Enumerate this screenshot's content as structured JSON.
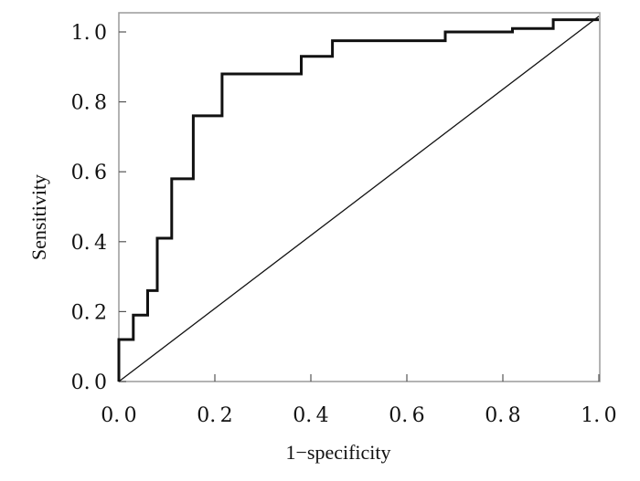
{
  "chart_data": {
    "type": "line",
    "title": "",
    "xlabel": "1−specificity",
    "ylabel": "Sensitivity",
    "xlim": [
      0,
      1.0
    ],
    "ylim": [
      0,
      1.0
    ],
    "x_ticks": [
      0.0,
      0.2,
      0.4,
      0.6,
      0.8,
      1.0
    ],
    "x_tick_labels": [
      "0. 0",
      "0. 2",
      "0. 4",
      "0. 6",
      "0. 8",
      "1. 0"
    ],
    "y_ticks": [
      0.0,
      0.2,
      0.4,
      0.6,
      0.8,
      1.0
    ],
    "y_tick_labels": [
      "0. 0",
      "0. 2",
      "0. 4",
      "0. 6",
      "0. 8",
      "1. 0"
    ],
    "grid": false,
    "series": [
      {
        "style": "step",
        "color": "#111111",
        "points": [
          [
            0.0,
            0.0
          ],
          [
            0.0,
            0.12
          ],
          [
            0.03,
            0.12
          ],
          [
            0.03,
            0.19
          ],
          [
            0.06,
            0.19
          ],
          [
            0.06,
            0.26
          ],
          [
            0.08,
            0.26
          ],
          [
            0.08,
            0.41
          ],
          [
            0.11,
            0.41
          ],
          [
            0.11,
            0.58
          ],
          [
            0.155,
            0.58
          ],
          [
            0.155,
            0.76
          ],
          [
            0.215,
            0.76
          ],
          [
            0.215,
            0.88
          ],
          [
            0.38,
            0.88
          ],
          [
            0.38,
            0.93
          ],
          [
            0.445,
            0.93
          ],
          [
            0.445,
            0.975
          ],
          [
            0.68,
            0.975
          ],
          [
            0.68,
            1.0
          ],
          [
            0.82,
            1.0
          ],
          [
            0.82,
            1.01
          ],
          [
            0.905,
            1.01
          ],
          [
            0.905,
            1.035
          ],
          [
            1.0,
            1.035
          ]
        ]
      },
      {
        "style": "reference",
        "color": "#111111",
        "points": [
          [
            0.0,
            0.0
          ],
          [
            1.0,
            1.045
          ]
        ]
      }
    ]
  }
}
